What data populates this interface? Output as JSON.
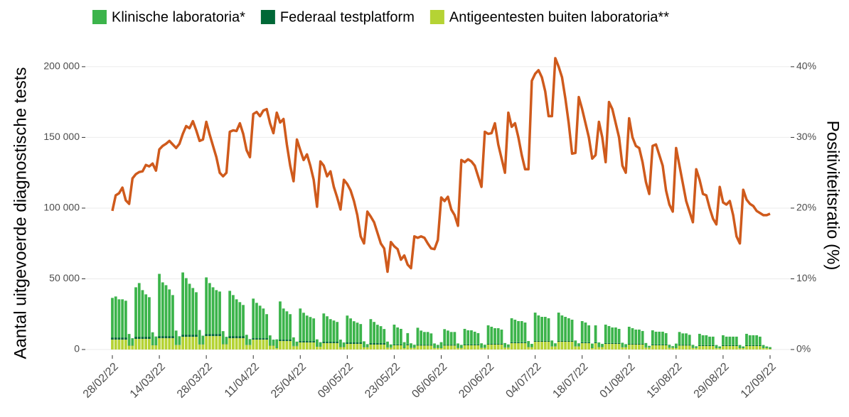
{
  "chart_data": {
    "type": "bar",
    "stacked": true,
    "legend": "top",
    "y_label": "Aantal uitgevoerde diagnostische tests",
    "y2_label": "Positiviteitsratio (%)",
    "categories": [
      "28/02/22",
      null,
      null,
      null,
      null,
      null,
      null,
      null,
      null,
      null,
      null,
      null,
      null,
      null,
      "14/03/22",
      null,
      null,
      null,
      null,
      null,
      null,
      null,
      null,
      null,
      null,
      null,
      null,
      null,
      "28/03/22",
      null,
      null,
      null,
      null,
      null,
      null,
      null,
      null,
      null,
      null,
      null,
      null,
      null,
      "11/04/22",
      null,
      null,
      null,
      null,
      null,
      null,
      null,
      null,
      null,
      null,
      null,
      null,
      null,
      "25/04/22",
      null,
      null,
      null,
      null,
      null,
      null,
      null,
      null,
      null,
      null,
      null,
      null,
      null,
      "09/05/22",
      null,
      null,
      null,
      null,
      null,
      null,
      null,
      null,
      null,
      null,
      null,
      null,
      null,
      "23/05/22",
      null,
      null,
      null,
      null,
      null,
      null,
      null,
      null,
      null,
      null,
      null,
      null,
      null,
      "06/06/22",
      null,
      null,
      null,
      null,
      null,
      null,
      null,
      null,
      null,
      null,
      null,
      null,
      null,
      "20/06/22",
      null,
      null,
      null,
      null,
      null,
      null,
      null,
      null,
      null,
      null,
      null,
      null,
      null,
      "04/07/22",
      null,
      null,
      null,
      null,
      null,
      null,
      null,
      null,
      null,
      null,
      null,
      null,
      null,
      "18/07/22",
      null,
      null,
      null,
      null,
      null,
      null,
      null,
      null,
      null,
      null,
      null,
      null,
      null,
      "01/08/22",
      null,
      null,
      null,
      null,
      null,
      null,
      null,
      null,
      null,
      null,
      null,
      null,
      null,
      "15/08/22",
      null,
      null,
      null,
      null,
      null,
      null,
      null,
      null,
      null,
      null,
      null,
      null,
      null,
      "29/08/22",
      null,
      null,
      null,
      null,
      null,
      null,
      null,
      null,
      null,
      null,
      null,
      null,
      null,
      "12/09/22"
    ],
    "series": [
      {
        "name": "Klinische laboratoria*",
        "color": "#3cb44b",
        "values": [
          28000,
          29000,
          27000,
          27000,
          26000,
          8000,
          5000,
          35000,
          38000,
          33000,
          30000,
          28000,
          9000,
          6000,
          44000,
          38000,
          36000,
          33000,
          29000,
          10000,
          6000,
          44000,
          40000,
          36000,
          33000,
          30000,
          10000,
          6000,
          40000,
          36000,
          33000,
          31000,
          30000,
          9000,
          5000,
          32000,
          29000,
          26000,
          24000,
          22000,
          7000,
          4000,
          28000,
          25000,
          23000,
          21000,
          17000,
          7000,
          4000,
          6000,
          27000,
          22000,
          20000,
          18000,
          6000,
          3000,
          23000,
          20000,
          18000,
          17000,
          16000,
          5000,
          3000,
          20000,
          18000,
          16000,
          15000,
          14000,
          5000,
          3000,
          19000,
          17000,
          15000,
          14000,
          13000,
          4000,
          2000,
          17000,
          15000,
          13000,
          12000,
          10000,
          4000,
          2000,
          14000,
          12000,
          11000,
          4000,
          8000,
          3000,
          2000,
          12000,
          10000,
          9000,
          9000,
          8000,
          3000,
          2000,
          4000,
          11000,
          10000,
          9000,
          9000,
          3000,
          2000,
          11000,
          10000,
          10000,
          9000,
          8000,
          3000,
          2000,
          13000,
          12000,
          11000,
          11000,
          10000,
          3000,
          2000,
          17000,
          16000,
          15000,
          15000,
          14000,
          4000,
          2000,
          20000,
          18000,
          17000,
          17000,
          16000,
          4000,
          2000,
          20000,
          18000,
          17000,
          16000,
          15000,
          4000,
          2000,
          15000,
          14000,
          12000,
          3000,
          12000,
          3000,
          2000,
          13000,
          12000,
          11000,
          11000,
          10000,
          3000,
          2000,
          12000,
          11000,
          10000,
          10000,
          9000,
          3000,
          1000,
          10000,
          9000,
          9000,
          9000,
          8000,
          2000,
          1000,
          3000,
          9000,
          8000,
          8000,
          7000,
          2000,
          1000,
          8000,
          7000,
          7000,
          6000,
          6000,
          2000,
          1000,
          7000,
          6000,
          6000,
          6000,
          6000,
          2000,
          1000,
          8000,
          7000,
          7000,
          7000,
          6000,
          2000,
          1000,
          1000
        ]
      },
      {
        "name": "Federaal testplatform",
        "color": "#006837",
        "values": [
          1500,
          1500,
          1500,
          1500,
          1500,
          200,
          200,
          1500,
          1500,
          1500,
          1500,
          1500,
          200,
          200,
          1500,
          1500,
          1500,
          1500,
          1500,
          200,
          200,
          1500,
          1500,
          1500,
          1500,
          1500,
          200,
          200,
          1500,
          1500,
          1500,
          1500,
          1500,
          200,
          200,
          1500,
          1500,
          1500,
          1500,
          1500,
          200,
          200,
          1000,
          1000,
          1000,
          1000,
          1000,
          200,
          200,
          200,
          1000,
          1000,
          1000,
          1000,
          200,
          200,
          1000,
          1000,
          1000,
          1000,
          1000,
          200,
          200,
          1000,
          1000,
          1000,
          1000,
          1000,
          200,
          200,
          1000,
          1000,
          1000,
          1000,
          1000,
          200,
          200,
          1000,
          1000,
          1000,
          1000,
          1000,
          200,
          200,
          600,
          600,
          600,
          200,
          600,
          200,
          200,
          600,
          600,
          600,
          600,
          600,
          200,
          200,
          200,
          600,
          600,
          600,
          600,
          200,
          200,
          600,
          600,
          600,
          600,
          600,
          200,
          200,
          600,
          600,
          600,
          600,
          600,
          200,
          200,
          600,
          600,
          600,
          600,
          600,
          200,
          200,
          600,
          600,
          600,
          600,
          600,
          200,
          200,
          600,
          600,
          600,
          600,
          600,
          200,
          200,
          600,
          600,
          600,
          200,
          600,
          200,
          200,
          600,
          600,
          600,
          600,
          600,
          200,
          200,
          600,
          600,
          600,
          600,
          600,
          200,
          200,
          600,
          600,
          600,
          600,
          600,
          200,
          200,
          200,
          600,
          600,
          600,
          600,
          200,
          200,
          600,
          600,
          600,
          600,
          600,
          200,
          200,
          600,
          600,
          600,
          600,
          600,
          200,
          200,
          600,
          600,
          600,
          600,
          600,
          200,
          200,
          200
        ]
      },
      {
        "name": "Antigeentesten buiten laboratoria**",
        "color": "#b5d334",
        "values": [
          7000,
          7000,
          7000,
          7000,
          7000,
          2800,
          2800,
          7500,
          7500,
          7500,
          7500,
          7500,
          3000,
          3000,
          8000,
          8000,
          8000,
          8000,
          8000,
          3200,
          3200,
          9000,
          9000,
          9000,
          9000,
          9000,
          3600,
          3600,
          9500,
          9500,
          9500,
          9500,
          9500,
          3800,
          3800,
          8000,
          8000,
          8000,
          8000,
          8000,
          3200,
          3200,
          7000,
          7000,
          7000,
          7000,
          7000,
          2800,
          2800,
          1000,
          6000,
          6000,
          6000,
          6000,
          2400,
          2400,
          5000,
          5000,
          5000,
          5000,
          5000,
          2000,
          2000,
          4500,
          4500,
          4500,
          4500,
          4500,
          1800,
          1800,
          4000,
          4000,
          4000,
          4000,
          4000,
          1600,
          1600,
          3500,
          3500,
          3500,
          3500,
          3500,
          1400,
          1400,
          3000,
          3000,
          3000,
          1000,
          3000,
          1200,
          1200,
          2800,
          2800,
          2800,
          2800,
          2800,
          1100,
          1100,
          1000,
          2800,
          2800,
          2800,
          2800,
          1100,
          1100,
          3000,
          3000,
          3000,
          3000,
          3000,
          1200,
          1200,
          3500,
          3500,
          3500,
          3500,
          3500,
          1400,
          1400,
          4500,
          4500,
          4500,
          4500,
          4500,
          1800,
          1800,
          5500,
          5500,
          5500,
          5500,
          5500,
          2200,
          2200,
          5500,
          5500,
          5500,
          5500,
          5500,
          2200,
          2200,
          4500,
          4500,
          4500,
          1000,
          4500,
          1800,
          1800,
          4000,
          4000,
          4000,
          4000,
          4000,
          1600,
          1600,
          3500,
          3500,
          3500,
          3500,
          3500,
          1400,
          1400,
          3000,
          3000,
          3000,
          3000,
          3000,
          1200,
          1200,
          1000,
          2800,
          2800,
          2800,
          2800,
          1100,
          1100,
          2500,
          2500,
          2500,
          2500,
          2500,
          1000,
          1000,
          2500,
          2500,
          2500,
          2500,
          2500,
          1000,
          1000,
          2500,
          2500,
          2500,
          2500,
          2500,
          1000,
          1000,
          500
        ]
      },
      {
        "type": "line",
        "axis": "y2",
        "color": "#cf5a1c",
        "values": [
          19.6,
          21.8,
          22.1,
          22.9,
          21.1,
          20.6,
          24.2,
          24.8,
          25.1,
          25.2,
          26.1,
          25.9,
          26.3,
          25.3,
          28.3,
          28.8,
          29.1,
          29.5,
          29.0,
          28.5,
          29.1,
          30.5,
          31.6,
          31.3,
          32.3,
          31.0,
          29.5,
          29.7,
          32.2,
          30.4,
          28.8,
          27.2,
          25.0,
          24.5,
          25.0,
          30.8,
          31.0,
          30.9,
          32.0,
          30.5,
          28.2,
          27.2,
          33.3,
          33.6,
          33.0,
          33.8,
          34.0,
          32.0,
          30.6,
          33.5,
          32.1,
          32.6,
          29.0,
          26.0,
          23.8,
          29.7,
          28.2,
          26.8,
          27.6,
          26.0,
          24.0,
          20.2,
          26.6,
          26.0,
          24.5,
          25.2,
          23.0,
          21.5,
          19.8,
          24.0,
          23.4,
          22.5,
          21.0,
          19.0,
          16.0,
          15.0,
          19.5,
          18.8,
          18.0,
          16.5,
          15.0,
          14.3,
          11.0,
          15.2,
          14.6,
          14.2,
          12.7,
          13.3,
          12.0,
          11.5,
          16.0,
          15.8,
          16.0,
          15.8,
          15.0,
          14.3,
          14.2,
          15.5,
          21.5,
          21.0,
          21.6,
          19.8,
          19.0,
          17.5,
          26.8,
          26.5,
          26.9,
          26.6,
          26.0,
          24.5,
          23.0,
          30.8,
          30.5,
          30.6,
          32.0,
          29.0,
          27.0,
          25.0,
          33.5,
          31.5,
          32.0,
          30.0,
          27.5,
          25.5,
          25.5,
          38.0,
          39.0,
          39.5,
          38.5,
          36.5,
          33.0,
          33.0,
          41.2,
          40.0,
          38.5,
          35.5,
          32.0,
          27.7,
          27.8,
          35.7,
          34.0,
          32.0,
          30.0,
          27.0,
          27.5,
          32.2,
          30.0,
          26.5,
          35.0,
          34.0,
          32.0,
          30.0,
          26.0,
          25.0,
          32.7,
          30.0,
          28.8,
          28.5,
          26.5,
          23.7,
          22.0,
          28.8,
          29.0,
          27.5,
          26.0,
          22.5,
          20.5,
          19.5,
          28.5,
          26.0,
          23.5,
          21.0,
          19.5,
          18.0,
          25.5,
          24.0,
          22.0,
          21.8,
          20.0,
          18.5,
          17.7,
          23.0,
          20.8,
          20.5,
          21.0,
          19.0,
          16.0,
          15.0,
          22.6,
          21.2,
          20.6,
          20.3,
          19.6,
          19.3,
          19.0,
          19.0,
          19.2
        ]
      }
    ],
    "ylim": [
      0,
      212000
    ],
    "yticks": [
      {
        "value": 0,
        "label": "0"
      },
      {
        "value": 50000,
        "label": "50 000"
      },
      {
        "value": 100000,
        "label": "100 000"
      },
      {
        "value": 150000,
        "label": "150 000"
      },
      {
        "value": 200000,
        "label": "200 000"
      }
    ],
    "y2lim": [
      0,
      42.4
    ],
    "y2ticks": [
      {
        "value": 0,
        "label": "0%"
      },
      {
        "value": 10,
        "label": "10%"
      },
      {
        "value": 20,
        "label": "20%"
      },
      {
        "value": 30,
        "label": "30%"
      },
      {
        "value": 40,
        "label": "40%"
      }
    ],
    "grid": true
  }
}
